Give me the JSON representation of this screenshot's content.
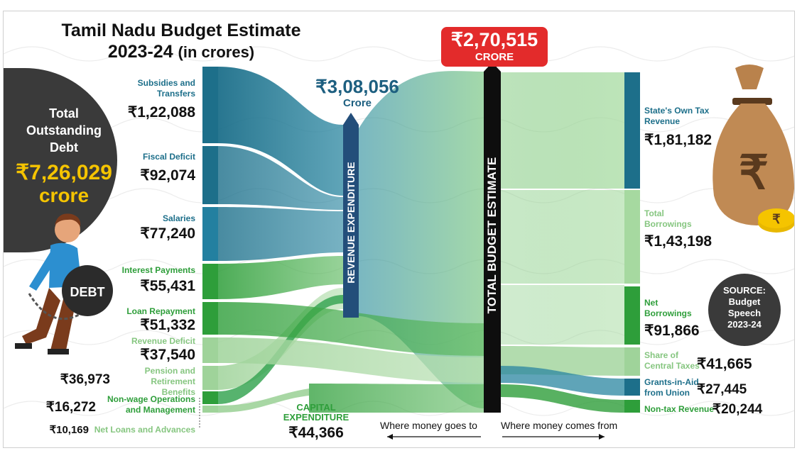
{
  "title": {
    "line1": "Tamil Nadu Budget Estimate",
    "line2_main": "2023-24",
    "line2_unit": "(in crores)"
  },
  "debt": {
    "label": "Total Outstanding Debt",
    "value": "₹7,26,029",
    "unit": "crore",
    "ball_text": "DEBT"
  },
  "revenue_expenditure": {
    "value": "₹3,08,056",
    "unit": "Crore",
    "bar_label": "REVENUE EXPENDITURE"
  },
  "total_budget": {
    "value": "₹2,70,515",
    "unit": "CRORE",
    "bar_label": "TOTAL BUDGET ESTIMATE"
  },
  "capital_expenditure": {
    "label": "CAPITAL EXPENDITURE",
    "value": "₹44,366"
  },
  "left_items": [
    {
      "label": "Subsidies and Transfers",
      "value": "₹1,22,088"
    },
    {
      "label": "Fiscal Deficit",
      "value": "₹92,074"
    },
    {
      "label": "Salaries",
      "value": "₹77,240"
    },
    {
      "label": "Interest Payments",
      "value": "₹55,431"
    },
    {
      "label": "Loan Repayment",
      "value": "₹51,332"
    },
    {
      "label": "Revenue Deficit",
      "value": "₹37,540"
    },
    {
      "label": "Pension and Retirement Benefits",
      "value": "₹36,973"
    },
    {
      "label": "Non-wage Operations and Management",
      "value": "₹16,272"
    },
    {
      "label": "Net Loans and Advances",
      "value": "₹10,169"
    }
  ],
  "right_items": [
    {
      "label": "State's Own Tax Revenue",
      "value": "₹1,81,182"
    },
    {
      "label": "Total Borrowings",
      "value": "₹1,43,198"
    },
    {
      "label": "Net Borrowings",
      "value": "₹91,866"
    },
    {
      "label": "Share of Central Taxes",
      "value": "₹41,665"
    },
    {
      "label": "Grants-in-Aid from Union",
      "value": "₹27,445"
    },
    {
      "label": "Non-tax Revenue",
      "value": "₹20,244"
    }
  ],
  "footer": {
    "goes_to": "Where money goes to",
    "comes_from": "Where money comes from"
  },
  "source": {
    "line1": "SOURCE:",
    "line2": "Budget",
    "line3": "Speech",
    "line4": "2023-24"
  },
  "money_bag": {
    "symbol": "₹",
    "coin_symbol": "₹"
  },
  "colors": {
    "teal": "#1d6f8a",
    "green": "#2e9e3a",
    "light_green": "#a6d9a0",
    "red": "#e32b2b",
    "navy": "#234e7a",
    "dark": "#3a3a3a",
    "gold": "#f5c400"
  }
}
